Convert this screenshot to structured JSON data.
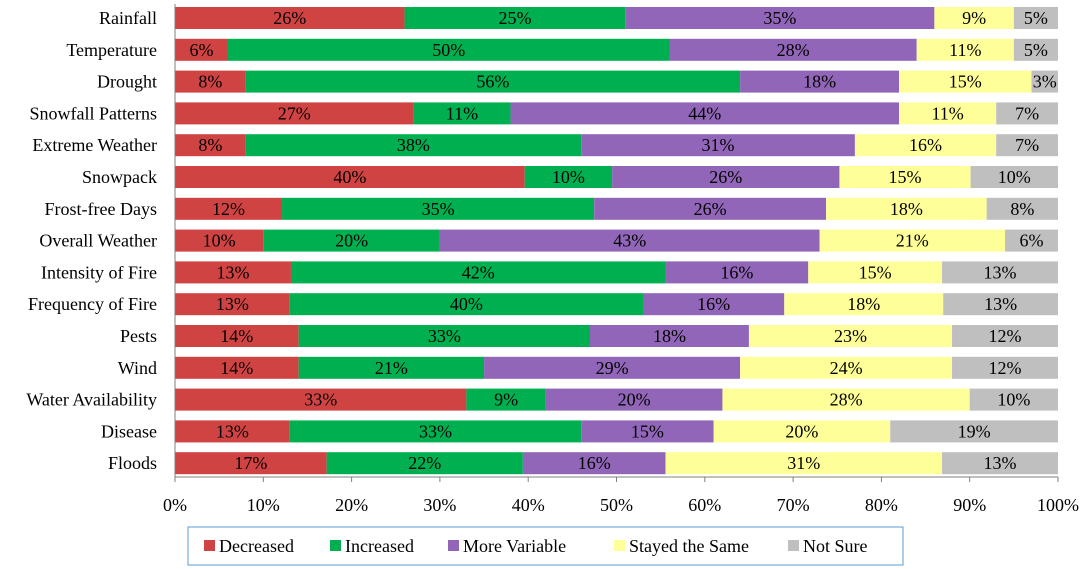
{
  "chart_data": {
    "type": "bar",
    "orientation": "horizontal",
    "stacked": true,
    "percent": true,
    "title": "",
    "xlabel": "",
    "ylabel": "",
    "xlim": [
      0,
      100
    ],
    "x_ticks": [
      "0%",
      "10%",
      "20%",
      "30%",
      "40%",
      "50%",
      "60%",
      "70%",
      "80%",
      "90%",
      "100%"
    ],
    "grid": false,
    "legend_position": "bottom",
    "categories": [
      "Rainfall",
      "Temperature",
      "Drought",
      "Snowfall Patterns",
      "Extreme Weather",
      "Snowpack",
      "Frost-free Days",
      "Overall Weather",
      "Intensity of Fire",
      "Frequency of Fire",
      "Pests",
      "Wind",
      "Water Availability",
      "Disease",
      "Floods"
    ],
    "series": [
      {
        "name": "Decreased",
        "color": "#d04343",
        "values": [
          26,
          6,
          8,
          27,
          8,
          40,
          12,
          10,
          13,
          13,
          14,
          14,
          33,
          13,
          17
        ]
      },
      {
        "name": "Increased",
        "color": "#00b050",
        "values": [
          25,
          50,
          56,
          11,
          38,
          10,
          35,
          20,
          42,
          40,
          33,
          21,
          9,
          33,
          22
        ]
      },
      {
        "name": "More Variable",
        "color": "#9166b8",
        "values": [
          35,
          28,
          18,
          44,
          31,
          26,
          26,
          43,
          16,
          16,
          18,
          29,
          20,
          15,
          16
        ]
      },
      {
        "name": "Stayed the Same",
        "color": "#ffff99",
        "values": [
          9,
          11,
          15,
          11,
          16,
          15,
          18,
          21,
          15,
          18,
          23,
          24,
          28,
          20,
          31
        ]
      },
      {
        "name": "Not Sure",
        "color": "#bfbfbf",
        "values": [
          5,
          5,
          3,
          7,
          7,
          10,
          8,
          6,
          13,
          13,
          12,
          12,
          10,
          19,
          13
        ]
      }
    ]
  },
  "colors": {
    "axis": "#7f7f7f",
    "legend_border": "#5b9bd5"
  }
}
